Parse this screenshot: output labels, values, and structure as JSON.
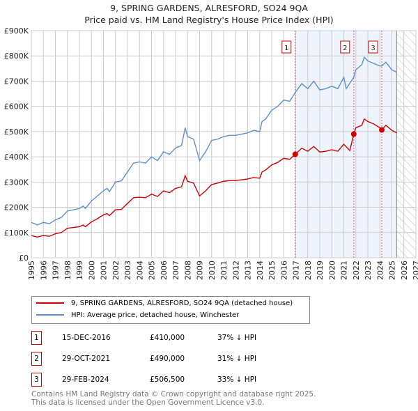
{
  "chart_data": {
    "type": "line",
    "title": "9, SPRING GARDENS, ALRESFORD, SO24 9QA",
    "subtitle": "Price paid vs. HM Land Registry's House Price Index (HPI)",
    "xlim": [
      1995,
      2027
    ],
    "ylim": [
      0,
      900000
    ],
    "yticks": [
      0,
      100000,
      200000,
      300000,
      400000,
      500000,
      600000,
      700000,
      800000,
      900000
    ],
    "ytick_labels": [
      "£0",
      "£100K",
      "£200K",
      "£300K",
      "£400K",
      "£500K",
      "£600K",
      "£700K",
      "£800K",
      "£900K"
    ],
    "xticks": [
      1995,
      1996,
      1997,
      1998,
      1999,
      2000,
      2001,
      2002,
      2003,
      2004,
      2005,
      2006,
      2007,
      2008,
      2009,
      2010,
      2011,
      2012,
      2013,
      2014,
      2015,
      2016,
      2017,
      2018,
      2019,
      2020,
      2021,
      2022,
      2023,
      2024,
      2025,
      2026,
      2027
    ],
    "grid": true,
    "data_end": 2025.4,
    "series": [
      {
        "name": "HPI: Average price, detached house, Winchester",
        "color": "#5b8fd0",
        "x": [
          1995,
          1995.5,
          1996,
          1996.5,
          1997,
          1997.5,
          1998,
          1999,
          1999.3,
          1999.5,
          2000,
          2000.5,
          2001,
          2001.3,
          2001.5,
          2002,
          2002.5,
          2003,
          2003.5,
          2004,
          2004.5,
          2005,
          2005.5,
          2006,
          2006.5,
          2007,
          2007.5,
          2007.8,
          2008,
          2008.5,
          2009,
          2009.5,
          2010,
          2010.5,
          2011,
          2011.5,
          2012,
          2012.5,
          2013,
          2013.5,
          2014,
          2014.2,
          2014.5,
          2015,
          2015.5,
          2016,
          2016.5,
          2016.96,
          2017.5,
          2018,
          2018.5,
          2019,
          2019.5,
          2020,
          2020.5,
          2021,
          2021.2,
          2021.83,
          2022,
          2022.5,
          2022.7,
          2023,
          2023.5,
          2024,
          2024.16,
          2024.5,
          2025,
          2025.4
        ],
        "y": [
          140000,
          130000,
          140000,
          135000,
          150000,
          160000,
          185000,
          195000,
          205000,
          195000,
          225000,
          245000,
          265000,
          275000,
          262000,
          300000,
          305000,
          340000,
          375000,
          380000,
          375000,
          400000,
          385000,
          420000,
          410000,
          435000,
          445000,
          515000,
          480000,
          470000,
          385000,
          420000,
          465000,
          470000,
          480000,
          485000,
          485000,
          490000,
          495000,
          505000,
          500000,
          540000,
          550000,
          585000,
          600000,
          625000,
          620000,
          655000,
          690000,
          670000,
          700000,
          665000,
          670000,
          680000,
          670000,
          715000,
          670000,
          715000,
          745000,
          765000,
          795000,
          780000,
          770000,
          760000,
          760000,
          775000,
          745000,
          735000
        ]
      },
      {
        "name": "9, SPRING GARDENS, ALRESFORD, SO24 9QA (detached house)",
        "color": "#cc0000",
        "x": [
          1995,
          1995.5,
          1996,
          1996.5,
          1997,
          1997.5,
          1998,
          1999,
          1999.3,
          1999.5,
          2000,
          2000.5,
          2001,
          2001.3,
          2001.5,
          2002,
          2002.5,
          2003,
          2003.5,
          2004,
          2004.5,
          2005,
          2005.5,
          2006,
          2006.5,
          2007,
          2007.5,
          2007.8,
          2008,
          2008.5,
          2009,
          2009.5,
          2010,
          2010.5,
          2011,
          2011.5,
          2012,
          2012.5,
          2013,
          2013.5,
          2014,
          2014.2,
          2014.5,
          2015,
          2015.5,
          2016,
          2016.5,
          2016.96,
          2017.5,
          2018,
          2018.5,
          2019,
          2019.5,
          2020,
          2020.5,
          2021,
          2021.5,
          2021.83,
          2022,
          2022.5,
          2022.7,
          2023,
          2023.5,
          2024,
          2024.16,
          2024.5,
          2025,
          2025.4
        ],
        "y": [
          88000,
          82000,
          88000,
          85000,
          95000,
          100000,
          117000,
          123000,
          130000,
          123000,
          142000,
          155000,
          170000,
          175000,
          167000,
          190000,
          192000,
          215000,
          238000,
          240000,
          238000,
          252000,
          243000,
          265000,
          258000,
          275000,
          281000,
          325000,
          303000,
          296000,
          245000,
          265000,
          290000,
          296000,
          303000,
          306000,
          306000,
          309000,
          312000,
          318000,
          315000,
          340000,
          348000,
          368000,
          378000,
          394000,
          390000,
          410000,
          434000,
          422000,
          441000,
          419000,
          422000,
          428000,
          422000,
          450000,
          425000,
          490000,
          515000,
          525000,
          550000,
          540000,
          530000,
          515000,
          506500,
          525000,
          505000,
          495000
        ]
      }
    ],
    "sales": [
      {
        "label": "1",
        "x": 2016.96,
        "y": 410000,
        "date": "15-DEC-2016",
        "price": "£410,000",
        "hpi": "37% ↓ HPI"
      },
      {
        "label": "2",
        "x": 2021.83,
        "y": 490000,
        "date": "29-OCT-2021",
        "price": "£490,000",
        "hpi": "31% ↓ HPI"
      },
      {
        "label": "3",
        "x": 2024.16,
        "y": 506500,
        "date": "29-FEB-2024",
        "price": "£506,500",
        "hpi": "33% ↓ HPI"
      }
    ]
  },
  "legend": {
    "red": "9, SPRING GARDENS, ALRESFORD, SO24 9QA (detached house)",
    "blue": "HPI: Average price, detached house, Winchester"
  },
  "footer": {
    "line1": "Contains HM Land Registry data © Crown copyright and database right 2025.",
    "line2": "This data is licensed under the Open Government Licence v3.0."
  }
}
